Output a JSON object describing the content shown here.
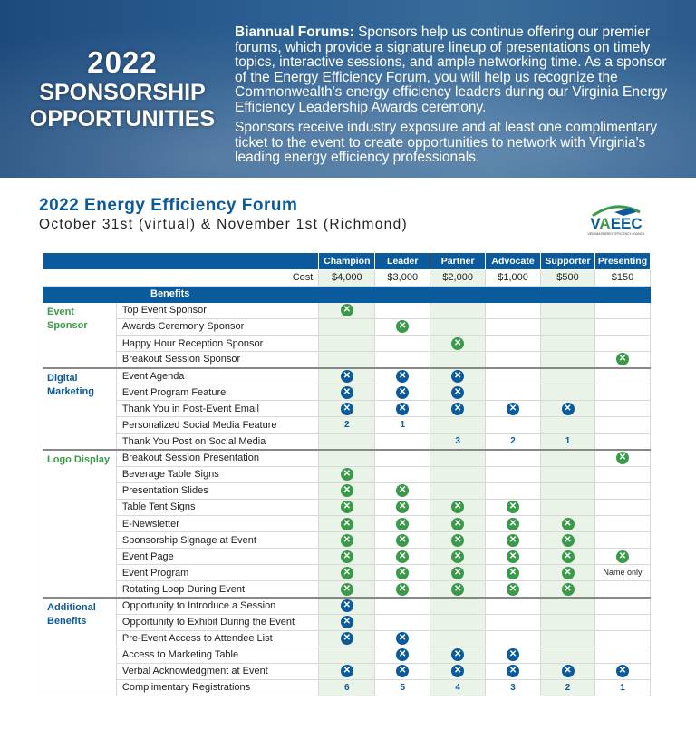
{
  "hero": {
    "year": "2022",
    "line1": "SPONSORSHIP",
    "line2": "OPPORTUNITIES",
    "p1_bold": "Biannual Forums:",
    "p1": " Sponsors help us continue offering our premier forums, which provide a signature lineup of presentations on timely topics, interactive sessions, and ample networking time. As a sponsor of the Energy Efficiency Forum, you will help us recognize the Commonwealth's energy efficiency leaders during our Virginia Energy Efficiency Leadership Awards ceremony.",
    "p2": "Sponsors receive industry exposure and at least one complimentary ticket to the event to create opportunities to network with Virginia's leading energy efficiency professionals."
  },
  "forum": {
    "title": "2022 Energy Efficiency Forum",
    "dates": "October 31st (virtual) & November 1st (Richmond)"
  },
  "logo": {
    "text": "VAEEC",
    "sub": "VIRGINIA ENERGY EFFICIENCY COUNCIL"
  },
  "colors": {
    "blue": "#0b5a9c",
    "green": "#3a9a4a",
    "shade": "#eaf3e8"
  },
  "table": {
    "tiers": [
      "Champion",
      "Leader",
      "Partner",
      "Advocate",
      "Supporter",
      "Presenting"
    ],
    "cost_label": "Cost",
    "costs": [
      "$4,000",
      "$3,000",
      "$2,000",
      "$1,000",
      "$500",
      "$150"
    ],
    "benefits_label": "Benefits",
    "groups": [
      {
        "name": "Event Sponsor",
        "color": "green",
        "rows": [
          {
            "benefit": "Top Event Sponsor",
            "cells": [
              "x",
              "",
              "",
              "",
              "",
              ""
            ]
          },
          {
            "benefit": "Awards Ceremony Sponsor",
            "cells": [
              "",
              "x",
              "",
              "",
              "",
              ""
            ]
          },
          {
            "benefit": "Happy Hour Reception Sponsor",
            "cells": [
              "",
              "",
              "x",
              "",
              "",
              ""
            ]
          },
          {
            "benefit": "Breakout Session Sponsor",
            "cells": [
              "",
              "",
              "",
              "",
              "",
              "x"
            ]
          }
        ]
      },
      {
        "name": "Digital Marketing",
        "color": "blue",
        "rows": [
          {
            "benefit": "Event Agenda",
            "cells": [
              "x",
              "x",
              "x",
              "",
              "",
              ""
            ]
          },
          {
            "benefit": "Event Program Feature",
            "cells": [
              "x",
              "x",
              "x",
              "",
              "",
              ""
            ]
          },
          {
            "benefit": "Thank You in Post-Event Email",
            "cells": [
              "x",
              "x",
              "x",
              "x",
              "x",
              ""
            ]
          },
          {
            "benefit": "Personalized Social Media Feature",
            "cells": [
              "2",
              "1",
              "",
              "",
              "",
              ""
            ]
          },
          {
            "benefit": "Thank You Post on Social Media",
            "cells": [
              "",
              "",
              "3",
              "2",
              "1",
              ""
            ]
          }
        ]
      },
      {
        "name": "Logo Display",
        "color": "green",
        "rows": [
          {
            "benefit": "Breakout Session Presentation",
            "cells": [
              "",
              "",
              "",
              "",
              "",
              "x"
            ]
          },
          {
            "benefit": "Beverage Table Signs",
            "cells": [
              "x",
              "",
              "",
              "",
              "",
              ""
            ]
          },
          {
            "benefit": "Presentation Slides",
            "cells": [
              "x",
              "x",
              "",
              "",
              "",
              ""
            ]
          },
          {
            "benefit": "Table Tent Signs",
            "cells": [
              "x",
              "x",
              "x",
              "x",
              "",
              ""
            ]
          },
          {
            "benefit": "E-Newsletter",
            "cells": [
              "x",
              "x",
              "x",
              "x",
              "x",
              ""
            ]
          },
          {
            "benefit": "Sponsorship Signage at Event",
            "cells": [
              "x",
              "x",
              "x",
              "x",
              "x",
              ""
            ]
          },
          {
            "benefit": "Event Page",
            "cells": [
              "x",
              "x",
              "x",
              "x",
              "x",
              "x"
            ]
          },
          {
            "benefit": "Event Program",
            "cells": [
              "x",
              "x",
              "x",
              "x",
              "x",
              "Name only"
            ]
          },
          {
            "benefit": "Rotating Loop During Event",
            "cells": [
              "x",
              "x",
              "x",
              "x",
              "x",
              ""
            ]
          }
        ]
      },
      {
        "name": "Additional Benefits",
        "color": "blue",
        "rows": [
          {
            "benefit": "Opportunity to Introduce a Session",
            "cells": [
              "x",
              "",
              "",
              "",
              "",
              ""
            ]
          },
          {
            "benefit": "Opportunity to Exhibit During the Event",
            "cells": [
              "x",
              "",
              "",
              "",
              "",
              ""
            ]
          },
          {
            "benefit": "Pre-Event Access to Attendee List",
            "cells": [
              "x",
              "x",
              "",
              "",
              "",
              ""
            ]
          },
          {
            "benefit": "Access to Marketing Table",
            "cells": [
              "",
              "x",
              "x",
              "x",
              "",
              ""
            ]
          },
          {
            "benefit": "Verbal Acknowledgment at Event",
            "cells": [
              "x",
              "x",
              "x",
              "x",
              "x",
              "x"
            ]
          },
          {
            "benefit": "Complimentary Registrations",
            "cells": [
              "6",
              "5",
              "4",
              "3",
              "2",
              "1"
            ]
          }
        ]
      }
    ]
  }
}
